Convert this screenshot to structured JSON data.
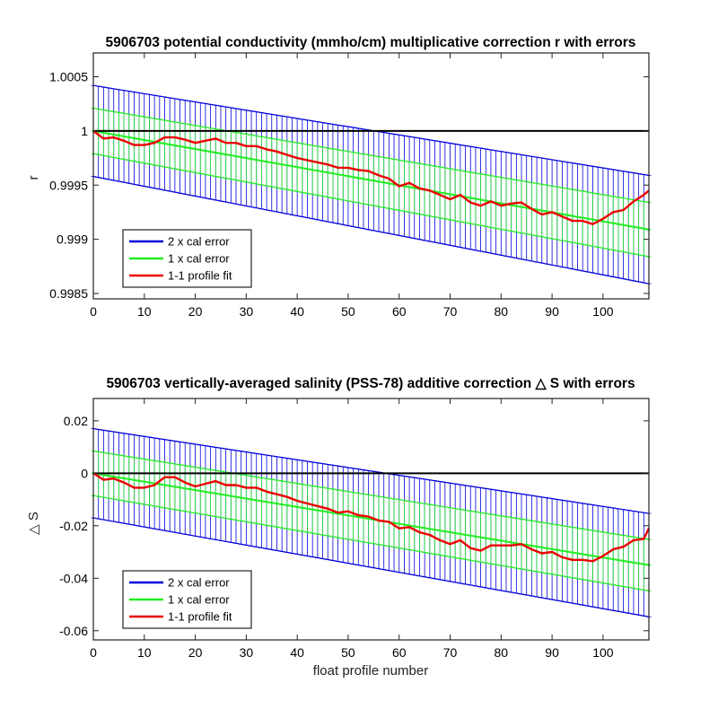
{
  "colors": {
    "blue": "#0000dd",
    "green": "#22ee22",
    "red": "#ee0000",
    "black": "#000000"
  },
  "chart_data": [
    {
      "type": "line",
      "title": "5906703 potential conductivity (mmho/cm) multiplicative correction r with errors",
      "xlabel": "",
      "ylabel": "r",
      "xlim": [
        0,
        109
      ],
      "ylim": [
        0.99845,
        1.00072
      ],
      "xticks": [
        0,
        10,
        20,
        30,
        40,
        50,
        60,
        70,
        80,
        90,
        100
      ],
      "xtick_labels": [
        "0",
        "10",
        "20",
        "30",
        "40",
        "50",
        "60",
        "70",
        "80",
        "90",
        "100"
      ],
      "yticks": [
        0.9985,
        0.999,
        0.9995,
        1,
        1.0005
      ],
      "ytick_labels": [
        "0.9985",
        "0.999",
        "0.9995",
        "1",
        "1.0005"
      ],
      "reference_line": 1,
      "fit_line": {
        "x": [
          0,
          109
        ],
        "y": [
          1.0,
          0.99909
        ]
      },
      "cal_error_1x": {
        "x": [
          0,
          109
        ],
        "half_width": [
          0.00021,
          0.00025
        ]
      },
      "cal_error_2x": {
        "x": [
          0,
          109
        ],
        "half_width": [
          0.00042,
          0.0005
        ]
      },
      "series": [
        {
          "name": "1-1 profile fit",
          "x": [
            0,
            2,
            4,
            6,
            8,
            10,
            12,
            14,
            16,
            18,
            20,
            22,
            24,
            26,
            28,
            30,
            32,
            34,
            36,
            38,
            40,
            42,
            44,
            46,
            48,
            50,
            52,
            54,
            56,
            58,
            60,
            62,
            64,
            66,
            68,
            70,
            72,
            74,
            76,
            78,
            80,
            82,
            84,
            86,
            88,
            90,
            92,
            94,
            96,
            98,
            100,
            102,
            104,
            106,
            108,
            109
          ],
          "y": [
            1.0,
            0.99993,
            0.99994,
            0.99991,
            0.99987,
            0.99987,
            0.99989,
            0.99994,
            0.99994,
            0.99992,
            0.99989,
            0.99991,
            0.99993,
            0.99989,
            0.99989,
            0.99986,
            0.99986,
            0.99983,
            0.99981,
            0.99978,
            0.99975,
            0.99973,
            0.99971,
            0.99969,
            0.99966,
            0.99966,
            0.99964,
            0.99963,
            0.99959,
            0.99956,
            0.99949,
            0.99952,
            0.99947,
            0.99945,
            0.99941,
            0.99937,
            0.99941,
            0.99934,
            0.99931,
            0.99935,
            0.99931,
            0.99933,
            0.99934,
            0.99928,
            0.99923,
            0.99925,
            0.99921,
            0.99917,
            0.99917,
            0.99914,
            0.99919,
            0.99925,
            0.99927,
            0.99935,
            0.99941,
            0.99945
          ]
        }
      ],
      "legend": {
        "placement": "bottom-left",
        "entries": [
          {
            "label": "2 x cal error",
            "color": "#0000dd"
          },
          {
            "label": "1 x cal error",
            "color": "#22ee22"
          },
          {
            "label": "1-1 profile fit",
            "color": "#ee0000"
          }
        ]
      }
    },
    {
      "type": "line",
      "title": "5906703 vertically-averaged salinity (PSS-78) additive correction △ S with errors",
      "xlabel": "float profile number",
      "ylabel": "△ S",
      "xlim": [
        0,
        109
      ],
      "ylim": [
        -0.0635,
        0.0285
      ],
      "xticks": [
        0,
        10,
        20,
        30,
        40,
        50,
        60,
        70,
        80,
        90,
        100
      ],
      "xtick_labels": [
        "0",
        "10",
        "20",
        "30",
        "40",
        "50",
        "60",
        "70",
        "80",
        "90",
        "100"
      ],
      "yticks": [
        -0.06,
        -0.04,
        -0.02,
        0,
        0.02
      ],
      "ytick_labels": [
        "-0.06",
        "-0.04",
        "-0.02",
        "0",
        "0.02"
      ],
      "reference_line": 0,
      "fit_line": {
        "x": [
          0,
          109
        ],
        "y": [
          0.0,
          -0.035
        ]
      },
      "cal_error_1x": {
        "x": [
          0,
          109
        ],
        "half_width": [
          0.0085,
          0.0098
        ]
      },
      "cal_error_2x": {
        "x": [
          0,
          109
        ],
        "half_width": [
          0.017,
          0.0197
        ]
      },
      "series": [
        {
          "name": "1-1 profile fit",
          "x": [
            0,
            2,
            4,
            6,
            8,
            10,
            12,
            14,
            16,
            18,
            20,
            22,
            24,
            26,
            28,
            30,
            32,
            34,
            36,
            38,
            40,
            42,
            44,
            46,
            48,
            50,
            52,
            54,
            56,
            58,
            60,
            62,
            64,
            66,
            68,
            70,
            72,
            74,
            76,
            78,
            80,
            82,
            84,
            86,
            88,
            90,
            92,
            94,
            96,
            98,
            100,
            102,
            104,
            106,
            108,
            109
          ],
          "y": [
            0.0,
            -0.0025,
            -0.002,
            -0.0035,
            -0.0055,
            -0.0055,
            -0.0045,
            -0.0015,
            -0.0015,
            -0.0035,
            -0.005,
            -0.004,
            -0.003,
            -0.0045,
            -0.0045,
            -0.0055,
            -0.0055,
            -0.007,
            -0.008,
            -0.009,
            -0.0105,
            -0.0115,
            -0.0125,
            -0.0135,
            -0.015,
            -0.0145,
            -0.016,
            -0.0165,
            -0.018,
            -0.0185,
            -0.021,
            -0.0205,
            -0.0225,
            -0.0235,
            -0.0255,
            -0.027,
            -0.0255,
            -0.0285,
            -0.0295,
            -0.0275,
            -0.0275,
            -0.0275,
            -0.027,
            -0.029,
            -0.0305,
            -0.03,
            -0.032,
            -0.033,
            -0.033,
            -0.0335,
            -0.0315,
            -0.029,
            -0.028,
            -0.0255,
            -0.025,
            -0.021
          ]
        }
      ],
      "legend": {
        "placement": "bottom-left",
        "entries": [
          {
            "label": "2 x cal error",
            "color": "#0000dd"
          },
          {
            "label": "1 x cal error",
            "color": "#22ee22"
          },
          {
            "label": "1-1 profile fit",
            "color": "#ee0000"
          }
        ]
      }
    }
  ]
}
